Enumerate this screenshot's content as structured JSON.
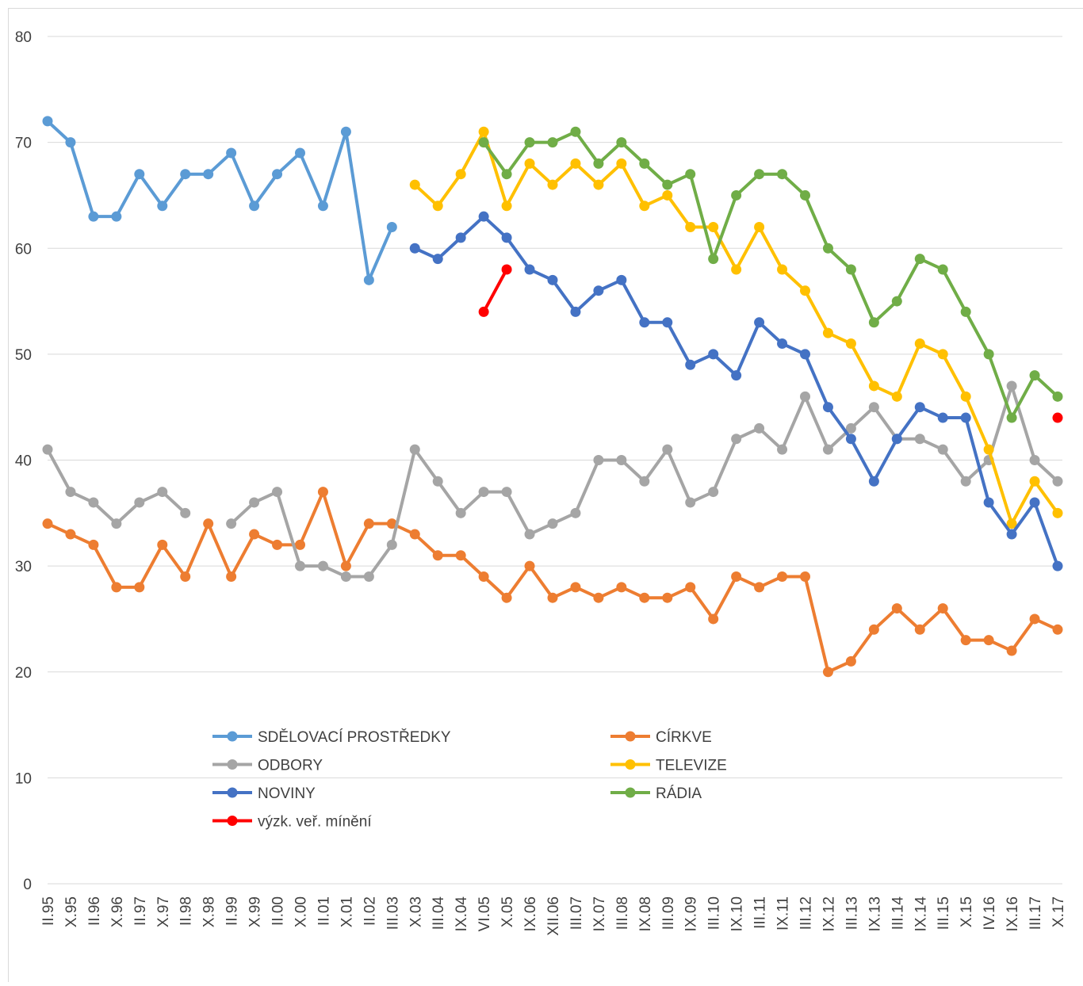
{
  "chart_data": {
    "type": "line",
    "categories": [
      "II.95",
      "X.95",
      "II.96",
      "X.96",
      "II.97",
      "X.97",
      "II.98",
      "X.98",
      "II.99",
      "X.99",
      "II.00",
      "X.00",
      "II.01",
      "X.01",
      "II.02",
      "III.03",
      "X.03",
      "III.04",
      "IX.04",
      "VI.05",
      "X.05",
      "IX.06",
      "XII.06",
      "III.07",
      "IX.07",
      "III.08",
      "IX.08",
      "III.09",
      "IX.09",
      "III.10",
      "IX.10",
      "III.11",
      "IX.11",
      "III.12",
      "IX.12",
      "III.13",
      "IX.13",
      "III.14",
      "IX.14",
      "III.15",
      "X.15",
      "IV.16",
      "IX.16",
      "III.17",
      "X.17"
    ],
    "series": [
      {
        "name": "SDĚLOVACÍ PROSTŘEDKY",
        "color": "#5b9bd5",
        "values": [
          72,
          70,
          63,
          63,
          67,
          64,
          67,
          67,
          69,
          64,
          67,
          69,
          64,
          71,
          57,
          62,
          null,
          null,
          null,
          null,
          null,
          null,
          null,
          null,
          null,
          null,
          null,
          null,
          null,
          null,
          null,
          null,
          null,
          null,
          null,
          null,
          null,
          null,
          null,
          null,
          null,
          null,
          null,
          null,
          null
        ]
      },
      {
        "name": "CÍRKVE",
        "color": "#ed7d31",
        "values": [
          34,
          33,
          32,
          28,
          28,
          32,
          29,
          34,
          29,
          33,
          32,
          32,
          37,
          30,
          34,
          34,
          33,
          31,
          31,
          29,
          27,
          30,
          27,
          28,
          27,
          28,
          27,
          27,
          28,
          25,
          29,
          28,
          29,
          29,
          20,
          21,
          24,
          26,
          24,
          26,
          23,
          23,
          22,
          25,
          24
        ]
      },
      {
        "name": "ODBORY",
        "color": "#a5a5a5",
        "values": [
          41,
          37,
          36,
          34,
          36,
          37,
          35,
          null,
          34,
          36,
          37,
          30,
          30,
          29,
          29,
          32,
          41,
          38,
          35,
          37,
          37,
          33,
          34,
          35,
          40,
          40,
          38,
          41,
          36,
          37,
          42,
          43,
          41,
          46,
          41,
          43,
          45,
          42,
          42,
          41,
          38,
          40,
          47,
          40,
          38
        ]
      },
      {
        "name": "TELEVIZE",
        "color": "#ffc000",
        "values": [
          null,
          null,
          null,
          null,
          null,
          null,
          null,
          null,
          null,
          null,
          null,
          null,
          null,
          null,
          null,
          null,
          66,
          64,
          67,
          71,
          64,
          68,
          66,
          68,
          66,
          68,
          64,
          65,
          62,
          62,
          58,
          62,
          58,
          56,
          52,
          51,
          47,
          46,
          51,
          50,
          46,
          41,
          34,
          38,
          35
        ]
      },
      {
        "name": "NOVINY",
        "color": "#4472c4",
        "values": [
          null,
          null,
          null,
          null,
          null,
          null,
          null,
          null,
          null,
          null,
          null,
          null,
          null,
          null,
          null,
          null,
          60,
          59,
          61,
          63,
          61,
          58,
          57,
          54,
          56,
          57,
          53,
          53,
          49,
          50,
          48,
          53,
          51,
          50,
          45,
          42,
          38,
          42,
          45,
          44,
          44,
          36,
          33,
          36,
          30
        ]
      },
      {
        "name": "RÁDIA",
        "color": "#70ad47",
        "values": [
          null,
          null,
          null,
          null,
          null,
          null,
          null,
          null,
          null,
          null,
          null,
          null,
          null,
          null,
          null,
          null,
          null,
          null,
          null,
          70,
          67,
          70,
          70,
          71,
          68,
          70,
          68,
          66,
          67,
          59,
          65,
          67,
          67,
          65,
          60,
          58,
          53,
          55,
          59,
          58,
          54,
          50,
          44,
          48,
          46
        ]
      },
      {
        "name": "výzk. veř. mínění",
        "color": "#ff0000",
        "values": [
          null,
          null,
          null,
          null,
          null,
          null,
          null,
          null,
          null,
          null,
          null,
          null,
          null,
          null,
          null,
          null,
          null,
          null,
          null,
          54,
          58,
          null,
          null,
          null,
          null,
          null,
          null,
          null,
          null,
          null,
          null,
          null,
          null,
          null,
          null,
          null,
          null,
          null,
          null,
          null,
          null,
          null,
          null,
          null,
          44
        ]
      }
    ],
    "ylim": [
      0,
      80
    ],
    "yticks": [
      0,
      10,
      20,
      30,
      40,
      50,
      60,
      70,
      80
    ],
    "grid": true
  }
}
